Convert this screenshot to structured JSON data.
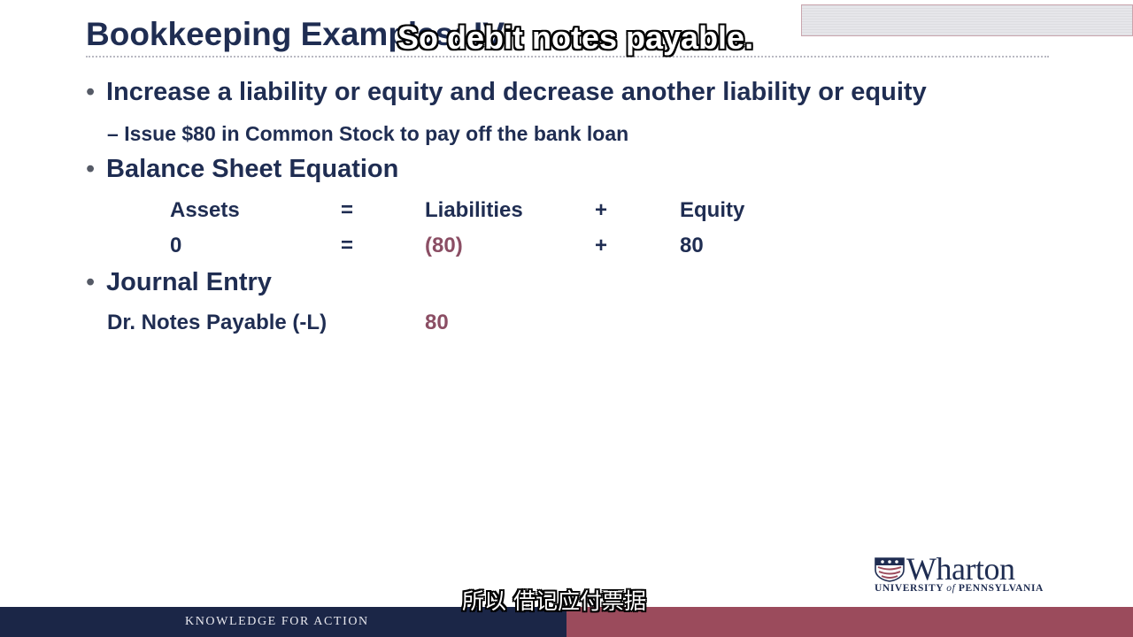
{
  "slide": {
    "title": "Bookkeeping Examples: IV",
    "bullets": {
      "first": "Increase a liability or equity and decrease another liability or equity",
      "first_sub": "Issue $80 in Common Stock to pay off the bank loan",
      "second": "Balance Sheet Equation",
      "third": "Journal Entry"
    },
    "bullet_symbol": "•",
    "sub_bullet_symbol": "–",
    "equation": {
      "headers": {
        "assets": "Assets",
        "eq": "=",
        "liabilities": "Liabilities",
        "plus": "+",
        "equity": "Equity"
      },
      "values": {
        "assets": "0",
        "eq": "=",
        "liabilities": "(80)",
        "plus": "+",
        "equity": "80"
      }
    },
    "journal": {
      "line": "Dr. Notes Payable (-L)",
      "amount": "80"
    }
  },
  "captions": {
    "english": "So debit notes payable.",
    "chinese": "所以 借记应付票据"
  },
  "logo": {
    "name": "Wharton",
    "sub_prefix": "UNIVERSITY ",
    "sub_of": "of",
    "sub_suffix": " PENNSYLVANIA"
  },
  "footer": {
    "tagline": "KNOWLEDGE FOR ACTION"
  },
  "colors": {
    "navy": "#1f2d52",
    "negative_value": "#8b4e64",
    "footer_navy": "#1b2647",
    "footer_maroon": "#9b4b5c"
  }
}
